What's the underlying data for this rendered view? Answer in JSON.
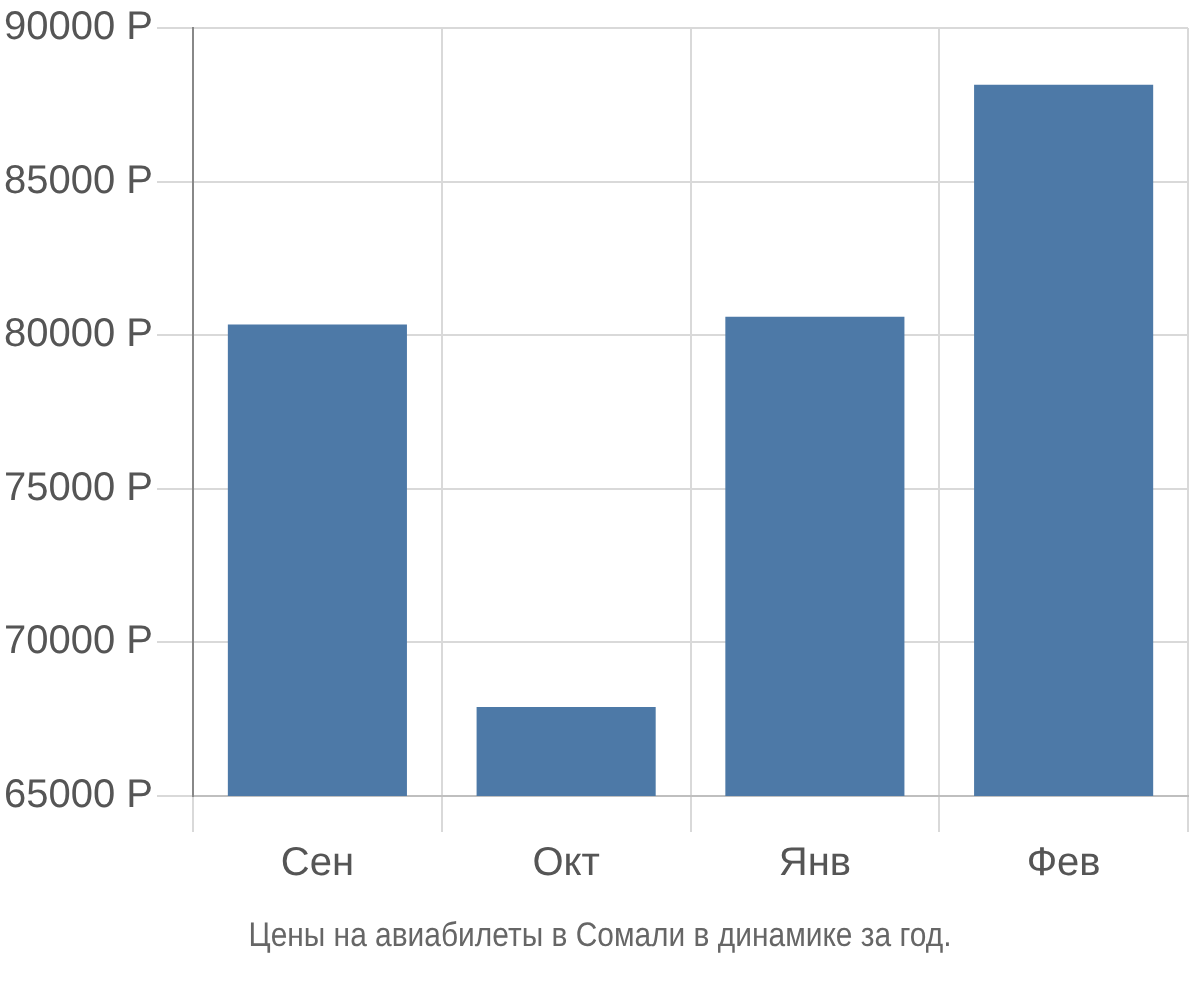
{
  "chart_data": {
    "type": "bar",
    "categories": [
      "Сен",
      "Окт",
      "Янв",
      "Фев"
    ],
    "values": [
      80350,
      67900,
      80600,
      88150
    ],
    "color": "#4d79a7",
    "ylim": [
      65000,
      90000
    ],
    "yticks": [
      {
        "value": 65000,
        "label": "65000 Р"
      },
      {
        "value": 70000,
        "label": "70000 Р"
      },
      {
        "value": 75000,
        "label": "75000 Р"
      },
      {
        "value": 80000,
        "label": "80000 Р"
      },
      {
        "value": 85000,
        "label": "85000 Р"
      },
      {
        "value": 90000,
        "label": "90000 Р"
      }
    ],
    "grid": true,
    "annotations": [
      "Цены на авиабилеты в Сомали в динамике за год."
    ]
  }
}
